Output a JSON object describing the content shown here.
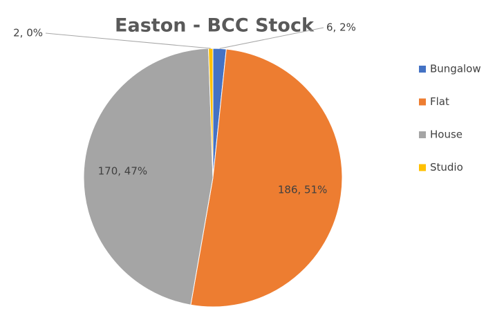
{
  "chart_data": {
    "type": "pie",
    "title": "Easton - BCC Stock",
    "categories": [
      "Bungalow",
      "Flat",
      "House",
      "Studio"
    ],
    "values": [
      6,
      186,
      170,
      2
    ],
    "value_labels": [
      "6, 2%",
      "186, 51%",
      "170, 47%",
      "2, 0%"
    ],
    "colors": [
      "#4472c4",
      "#ed7d31",
      "#a5a5a5",
      "#ffc000"
    ],
    "legend": "right"
  }
}
